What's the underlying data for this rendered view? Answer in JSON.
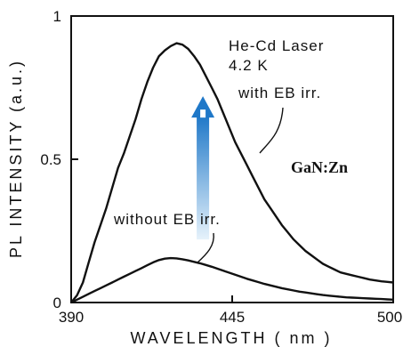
{
  "chart_data": {
    "type": "line",
    "xlabel": "WAVELENGTH ( nm )",
    "ylabel": "PL INTENSITY (a.u.)",
    "xlim": [
      390,
      500
    ],
    "ylim": [
      0,
      1
    ],
    "x_ticks": [
      "390",
      "445",
      "500"
    ],
    "y_ticks": [
      "0",
      "0.5",
      "1"
    ],
    "grid": false,
    "series": [
      {
        "name": "with EB irr.",
        "color": "#111111",
        "x": [
          390,
          392,
          394,
          396,
          398,
          400,
          402,
          404,
          406,
          408,
          410,
          412,
          414,
          416,
          418,
          420,
          422,
          424,
          426,
          428,
          430,
          432,
          434,
          436,
          438,
          440,
          442,
          444,
          446,
          448,
          450,
          452,
          454,
          456,
          458,
          460,
          462,
          464,
          466,
          468,
          470,
          472,
          474,
          476,
          478,
          480,
          482,
          484,
          486,
          488,
          490,
          492,
          494,
          496,
          498,
          500
        ],
        "y": [
          0,
          0.025,
          0.07,
          0.14,
          0.21,
          0.27,
          0.33,
          0.4,
          0.47,
          0.52,
          0.58,
          0.64,
          0.71,
          0.77,
          0.82,
          0.86,
          0.88,
          0.895,
          0.905,
          0.9,
          0.885,
          0.86,
          0.83,
          0.79,
          0.75,
          0.71,
          0.66,
          0.61,
          0.56,
          0.52,
          0.48,
          0.44,
          0.4,
          0.36,
          0.33,
          0.3,
          0.27,
          0.245,
          0.22,
          0.2,
          0.18,
          0.165,
          0.15,
          0.135,
          0.125,
          0.115,
          0.105,
          0.1,
          0.095,
          0.09,
          0.085,
          0.08,
          0.077,
          0.074,
          0.072,
          0.07
        ]
      },
      {
        "name": "without EB irr.",
        "color": "#111111",
        "x": [
          390,
          392,
          394,
          396,
          398,
          400,
          402,
          404,
          406,
          408,
          410,
          412,
          414,
          416,
          418,
          420,
          422,
          424,
          426,
          428,
          430,
          432,
          434,
          436,
          438,
          440,
          442,
          444,
          446,
          448,
          450,
          452,
          454,
          456,
          458,
          460,
          462,
          464,
          466,
          468,
          470,
          472,
          474,
          476,
          478,
          480,
          482,
          484,
          486,
          488,
          490,
          492,
          494,
          496,
          498,
          500
        ],
        "y": [
          0,
          0.01,
          0.02,
          0.03,
          0.04,
          0.05,
          0.06,
          0.07,
          0.08,
          0.09,
          0.1,
          0.11,
          0.12,
          0.13,
          0.14,
          0.148,
          0.153,
          0.155,
          0.154,
          0.151,
          0.147,
          0.142,
          0.137,
          0.131,
          0.125,
          0.118,
          0.111,
          0.104,
          0.097,
          0.09,
          0.083,
          0.077,
          0.071,
          0.065,
          0.06,
          0.055,
          0.05,
          0.046,
          0.042,
          0.038,
          0.035,
          0.032,
          0.029,
          0.026,
          0.024,
          0.022,
          0.02,
          0.018,
          0.017,
          0.016,
          0.015,
          0.014,
          0.013,
          0.012,
          0.011,
          0.01
        ]
      }
    ],
    "annotations": {
      "laser": "He-Cd Laser",
      "temperature": "4.2 K",
      "with_label": "with EB irr.",
      "without_label": "without EB irr.",
      "sample": "GaN:Zn"
    },
    "arrow": {
      "x": 435,
      "y_from": 0.22,
      "y_to": 0.72,
      "color_top": "#1f78c8",
      "color_bottom": "#e6f2fb"
    }
  }
}
